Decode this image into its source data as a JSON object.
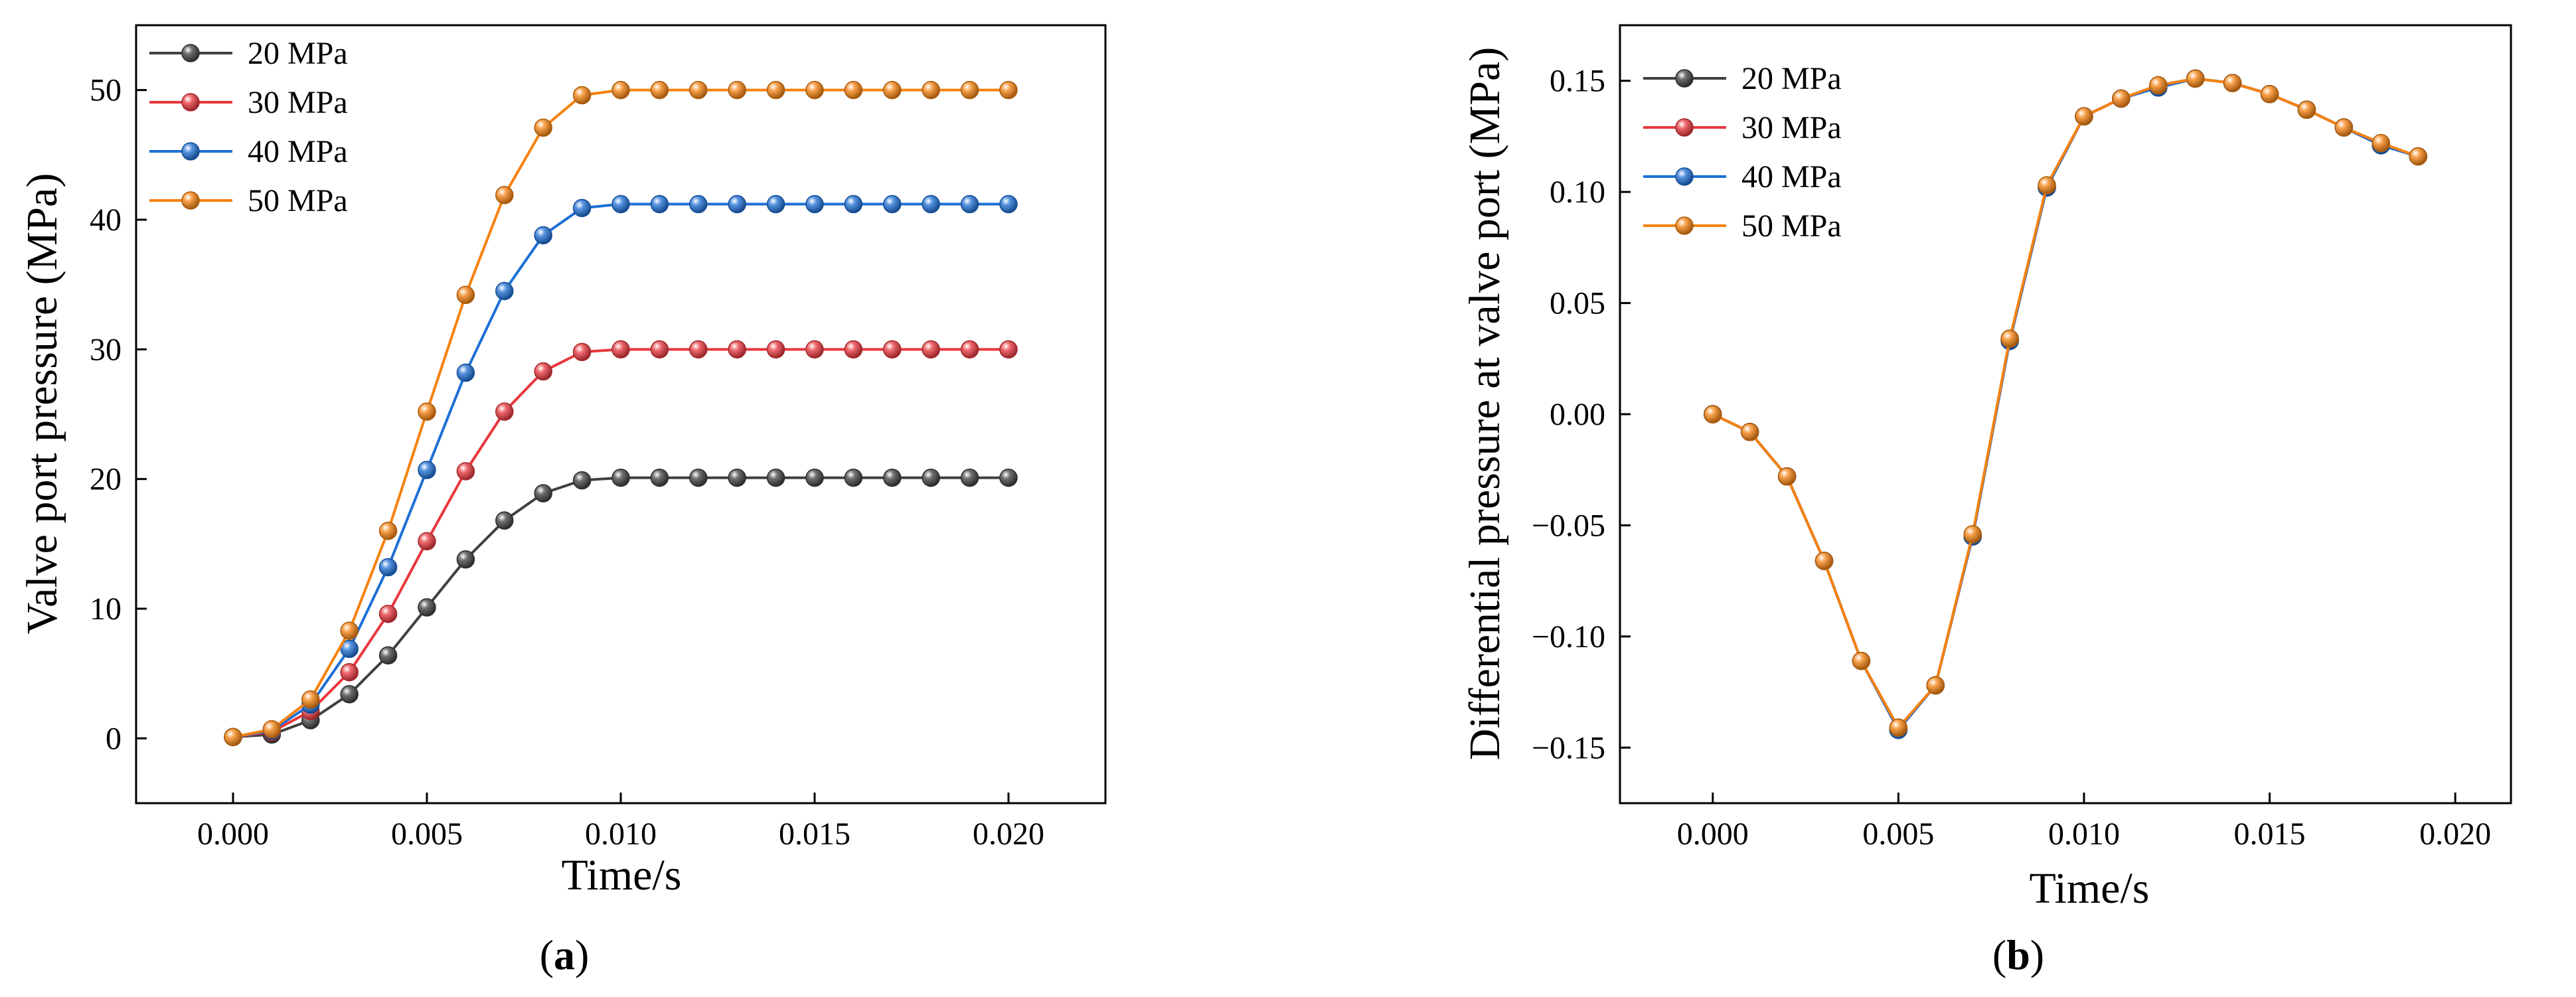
{
  "figure": {
    "panel_labels": [
      "a",
      "b"
    ]
  },
  "series_style": [
    {
      "name": "20 MPa",
      "color": "#404040"
    },
    {
      "name": "30 MPa",
      "color": "#e8373d"
    },
    {
      "name": "40 MPa",
      "color": "#1d6fd6"
    },
    {
      "name": "50 MPa",
      "color": "#f5820f"
    }
  ],
  "chart_data": [
    {
      "type": "line",
      "panel": "a",
      "title": "",
      "xlabel": "Time/s",
      "ylabel": "Valve port pressure (MPa)",
      "xlim": [
        -0.0025,
        0.0225
      ],
      "ylim": [
        -5,
        55
      ],
      "xticks": [
        0.0,
        0.005,
        0.01,
        0.015,
        0.02
      ],
      "xtick_labels": [
        "0.000",
        "0.005",
        "0.010",
        "0.015",
        "0.020"
      ],
      "yticks": [
        0,
        10,
        20,
        30,
        40,
        50
      ],
      "ytick_labels": [
        "0",
        "10",
        "20",
        "30",
        "40",
        "50"
      ],
      "legend": "top-left",
      "x": [
        0.0,
        0.001,
        0.002,
        0.003,
        0.004,
        0.005,
        0.006,
        0.007,
        0.008,
        0.009,
        0.01,
        0.011,
        0.012,
        0.013,
        0.014,
        0.015,
        0.016,
        0.017,
        0.018,
        0.019,
        0.02
      ],
      "series": [
        {
          "name": "20 MPa",
          "values": [
            0.1,
            0.3,
            1.4,
            3.4,
            6.4,
            10.1,
            13.8,
            16.8,
            18.9,
            19.9,
            20.1,
            20.1,
            20.1,
            20.1,
            20.1,
            20.1,
            20.1,
            20.1,
            20.1,
            20.1,
            20.1
          ]
        },
        {
          "name": "30 MPa",
          "values": [
            0.1,
            0.5,
            2.1,
            5.1,
            9.6,
            15.2,
            20.6,
            25.2,
            28.3,
            29.8,
            30.0,
            30.0,
            30.0,
            30.0,
            30.0,
            30.0,
            30.0,
            30.0,
            30.0,
            30.0,
            30.0
          ]
        },
        {
          "name": "40 MPa",
          "values": [
            0.1,
            0.6,
            2.6,
            6.9,
            13.2,
            20.7,
            28.2,
            34.5,
            38.8,
            40.9,
            41.2,
            41.2,
            41.2,
            41.2,
            41.2,
            41.2,
            41.2,
            41.2,
            41.2,
            41.2,
            41.2
          ]
        },
        {
          "name": "50 MPa",
          "values": [
            0.1,
            0.7,
            3.0,
            8.3,
            16.0,
            25.2,
            34.2,
            41.9,
            47.1,
            49.6,
            50.0,
            50.0,
            50.0,
            50.0,
            50.0,
            50.0,
            50.0,
            50.0,
            50.0,
            50.0,
            50.0
          ]
        }
      ]
    },
    {
      "type": "line",
      "panel": "b",
      "title": "",
      "xlabel": "Time/s",
      "ylabel": "Differential pressure at valve port (MPa)",
      "xlim": [
        -0.0025,
        0.0215
      ],
      "ylim": [
        -0.175,
        0.175
      ],
      "xticks": [
        0.0,
        0.005,
        0.01,
        0.015,
        0.02
      ],
      "xtick_labels": [
        "0.000",
        "0.005",
        "0.010",
        "0.015",
        "0.020"
      ],
      "yticks": [
        -0.15,
        -0.1,
        -0.05,
        0.0,
        0.05,
        0.1,
        0.15
      ],
      "ytick_labels": [
        "−0.15",
        "−0.10",
        "−0.05",
        "0.00",
        "0.05",
        "0.10",
        "0.15"
      ],
      "legend": "top-left",
      "x": [
        0.0,
        0.001,
        0.002,
        0.003,
        0.004,
        0.005,
        0.006,
        0.007,
        0.008,
        0.009,
        0.01,
        0.011,
        0.012,
        0.013,
        0.014,
        0.015,
        0.016,
        0.017,
        0.018,
        0.019
      ],
      "series": [
        {
          "name": "20 MPa",
          "values": [
            0.0,
            -0.008,
            -0.028,
            -0.066,
            -0.111,
            -0.142,
            -0.122,
            -0.055,
            0.033,
            0.102,
            0.134,
            0.142,
            0.147,
            0.151,
            0.149,
            0.144,
            0.137,
            0.129,
            0.121,
            0.116
          ]
        },
        {
          "name": "30 MPa",
          "values": [
            0.0,
            -0.008,
            -0.028,
            -0.066,
            -0.111,
            -0.142,
            -0.122,
            -0.055,
            0.033,
            0.102,
            0.134,
            0.142,
            0.147,
            0.151,
            0.149,
            0.144,
            0.137,
            0.129,
            0.121,
            0.116
          ]
        },
        {
          "name": "40 MPa",
          "values": [
            0.0,
            -0.008,
            -0.028,
            -0.066,
            -0.111,
            -0.142,
            -0.122,
            -0.055,
            0.033,
            0.102,
            0.134,
            0.142,
            0.147,
            0.151,
            0.149,
            0.144,
            0.137,
            0.129,
            0.121,
            0.116
          ]
        },
        {
          "name": "50 MPa",
          "values": [
            0.0,
            -0.008,
            -0.028,
            -0.066,
            -0.111,
            -0.141,
            -0.122,
            -0.054,
            0.034,
            0.103,
            0.134,
            0.142,
            0.148,
            0.151,
            0.149,
            0.144,
            0.137,
            0.129,
            0.122,
            0.116
          ]
        }
      ]
    }
  ]
}
